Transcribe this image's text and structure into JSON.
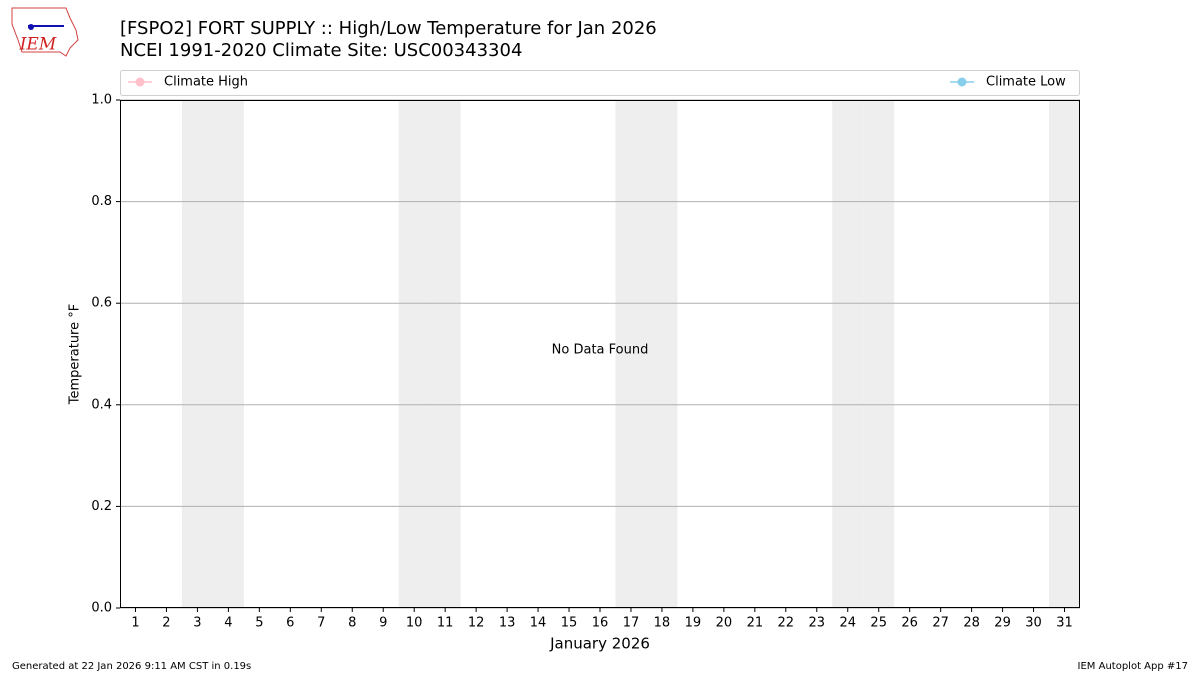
{
  "chart_data": {
    "type": "line",
    "title": "[FSPO2] FORT SUPPLY :: High/Low Temperature for Jan 2026",
    "subtitle": "NCEI 1991-2020 Climate Site: USC00343304",
    "logo_text": "IEM",
    "xlabel": "January 2026",
    "ylabel": "Temperature °F",
    "annotation": "No Data Found",
    "footer_left": "Generated at 22 Jan 2026 9:11 AM CST in 0.19s",
    "footer_right": "IEM Autoplot App #17",
    "series": [
      {
        "name": "Climate High",
        "color": "#ffc0cb"
      },
      {
        "name": "Climate Low",
        "color": "#87ceeb"
      }
    ],
    "xlim": [
      0.5,
      31.5
    ],
    "xticks": [
      1,
      2,
      3,
      4,
      5,
      6,
      7,
      8,
      9,
      10,
      11,
      12,
      13,
      14,
      15,
      16,
      17,
      18,
      19,
      20,
      21,
      22,
      23,
      24,
      25,
      26,
      27,
      28,
      29,
      30,
      31
    ],
    "shaded_days": [
      3,
      4,
      10,
      11,
      17,
      18,
      24,
      25,
      31
    ],
    "shade_color": "#eeeeee",
    "ylim": [
      0,
      1
    ],
    "yticks": [
      {
        "value": 0,
        "label": "0.0"
      },
      {
        "value": 0.2,
        "label": "0.2"
      },
      {
        "value": 0.4,
        "label": "0.4"
      },
      {
        "value": 0.6,
        "label": "0.6"
      },
      {
        "value": 0.8,
        "label": "0.8"
      },
      {
        "value": 1,
        "label": "1.0"
      }
    ],
    "grid": true
  }
}
